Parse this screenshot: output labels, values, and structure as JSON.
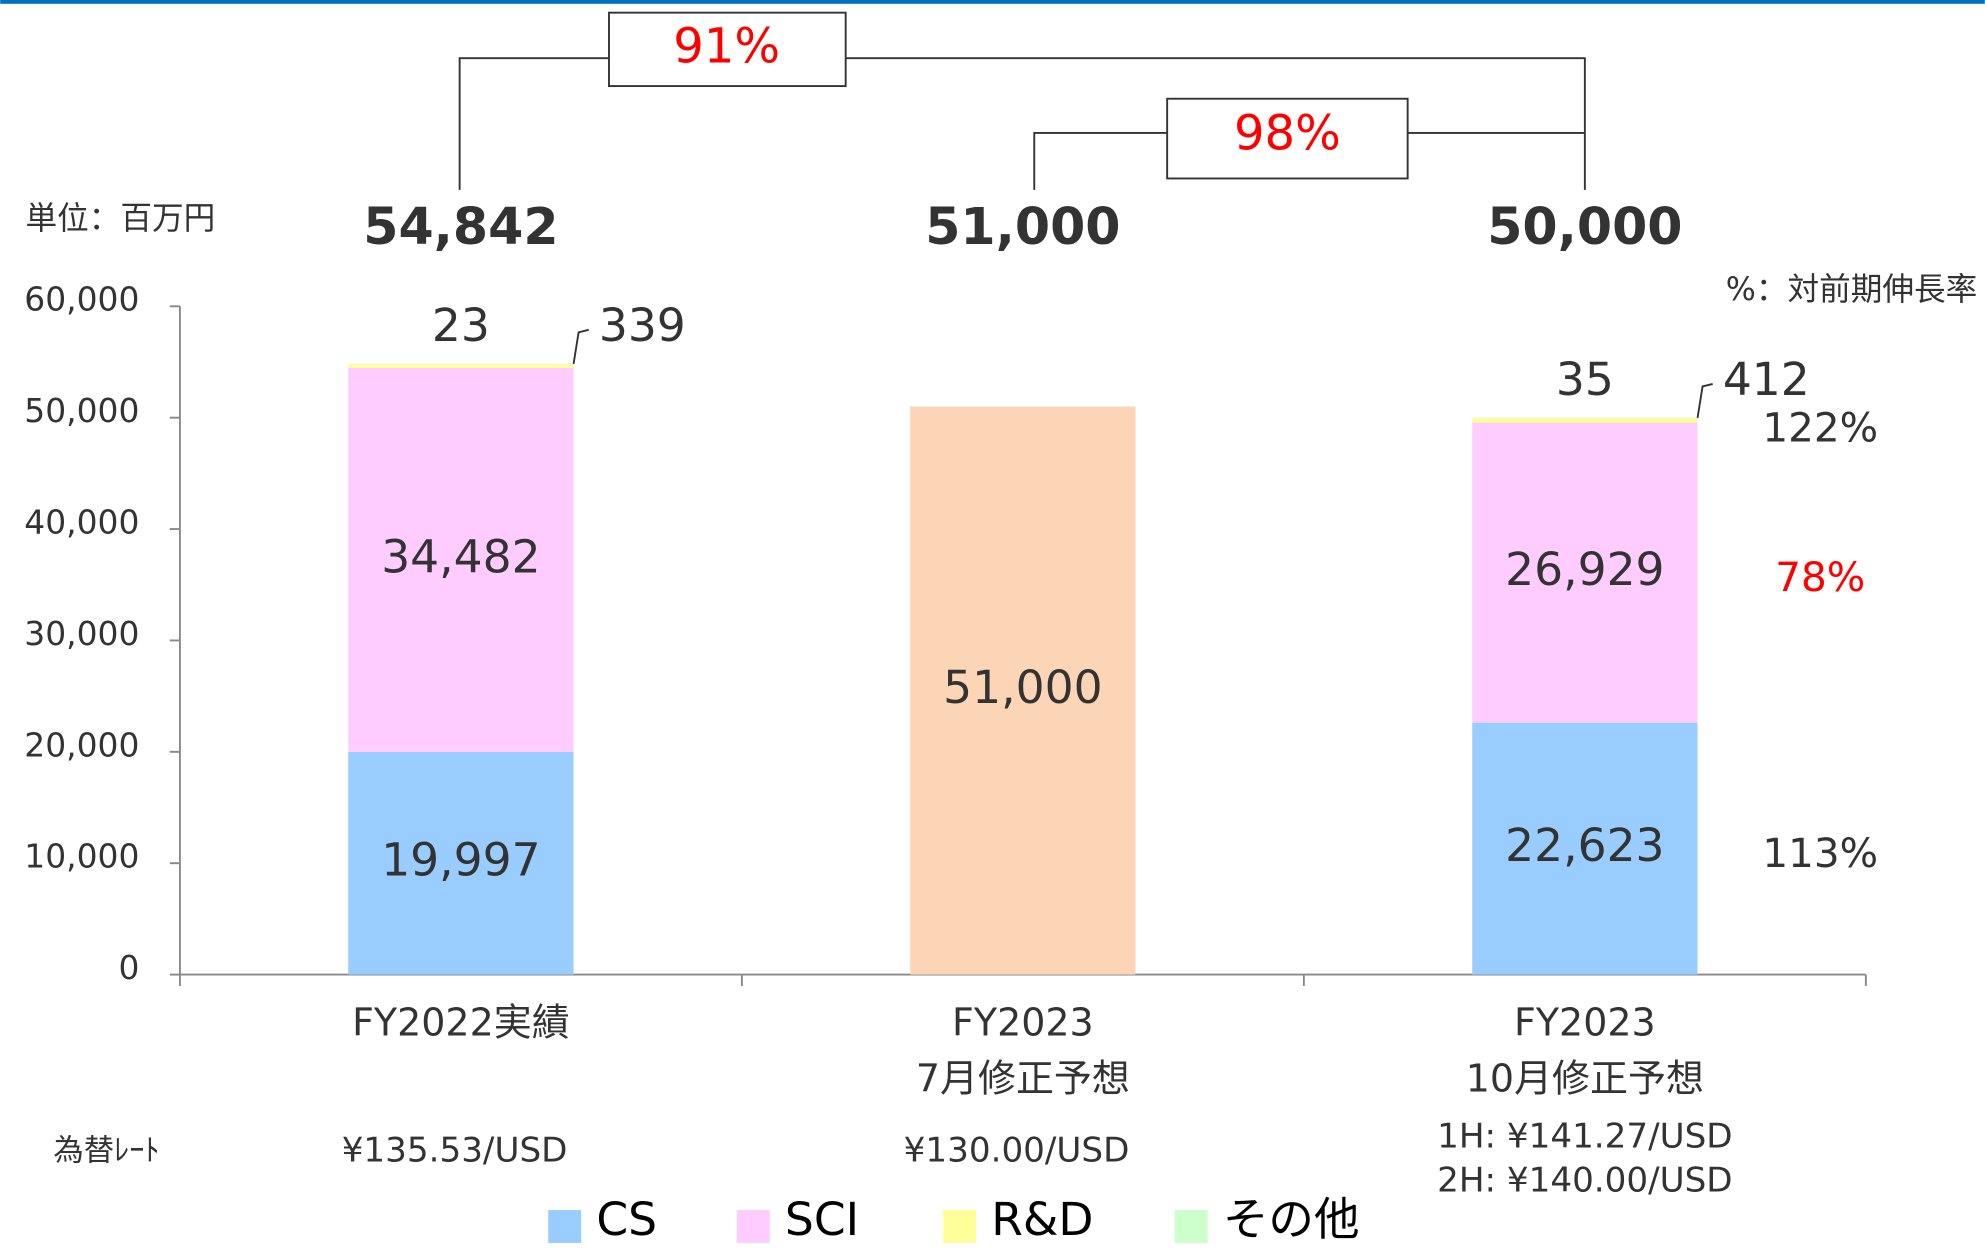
{
  "chart_data": {
    "type": "stacked_bar",
    "unit_label": "単位：百万円",
    "note": "%：対前期伸長率",
    "categories": [
      [
        "FY2022実績"
      ],
      [
        "FY2023",
        "7月修正予想"
      ],
      [
        "FY2023",
        "10月修正予想"
      ]
    ],
    "series": [
      {
        "name": "CS",
        "color": "#99ccff",
        "values": [
          19997,
          null,
          22623
        ],
        "value_labels": [
          "19,997",
          null,
          "22,623"
        ],
        "growth_labels": [
          null,
          null,
          "113%"
        ],
        "growth_color": "#333333"
      },
      {
        "name": "SCI",
        "color": "#ffccff",
        "values": [
          34482,
          null,
          26929
        ],
        "value_labels": [
          "34,482",
          null,
          "26,929"
        ],
        "growth_labels": [
          null,
          null,
          "78%"
        ],
        "growth_color": "#ff0000"
      },
      {
        "name": "R&D",
        "color": "#ffff99",
        "values": [
          339,
          null,
          412
        ],
        "growth_labels": [
          null,
          null,
          "122%"
        ],
        "growth_color": "#333333"
      },
      {
        "name": "その他",
        "color": "#ccffcc",
        "values": [
          23,
          null,
          35
        ]
      },
      {
        "color": "#fbd5b5",
        "values": [
          null,
          51000,
          null
        ],
        "value_labels": [
          null,
          "51,000",
          null
        ]
      }
    ],
    "totals": [
      54842,
      51000,
      50000
    ],
    "total_labels": [
      "54,842",
      "51,000",
      "50,000"
    ],
    "comparisons": [
      "91%",
      "98%"
    ],
    "fx_label": "為替ﾚｰﾄ",
    "fx_rates": [
      [
        "¥135.53/USD"
      ],
      [
        "¥130.00/USD"
      ],
      [
        "1H: ¥141.27/USD",
        "2H: ¥140.00/USD"
      ]
    ],
    "ylim": [
      0,
      60000
    ],
    "yticks": [
      0,
      {
        "value": 10000,
        "label": "10,000"
      },
      {
        "value": 20000,
        "label": "20,000"
      },
      {
        "value": 30000,
        "label": "30,000"
      },
      {
        "value": 40000,
        "label": "40,000"
      },
      {
        "value": 50000,
        "label": "50,000"
      },
      {
        "value": 60000,
        "label": "60,000"
      }
    ]
  }
}
